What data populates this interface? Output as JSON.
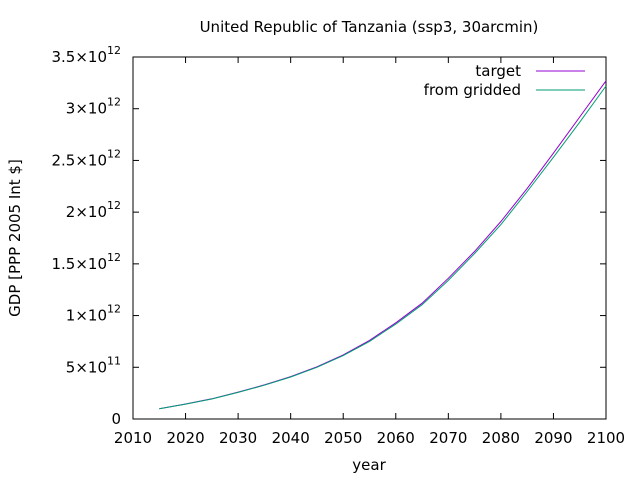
{
  "chart_data": {
    "type": "line",
    "title": "United Republic of Tanzania (ssp3, 30arcmin)",
    "xlabel": "year",
    "ylabel": "GDP [PPP 2005 Int $]",
    "xlim": [
      2010,
      2100
    ],
    "ylim": [
      0,
      3500000000000.0
    ],
    "grid": false,
    "legend_position": "top-right",
    "x_ticks": [
      {
        "value": 2010,
        "label": "2010"
      },
      {
        "value": 2020,
        "label": "2020"
      },
      {
        "value": 2030,
        "label": "2030"
      },
      {
        "value": 2040,
        "label": "2040"
      },
      {
        "value": 2050,
        "label": "2050"
      },
      {
        "value": 2060,
        "label": "2060"
      },
      {
        "value": 2070,
        "label": "2070"
      },
      {
        "value": 2080,
        "label": "2080"
      },
      {
        "value": 2090,
        "label": "2090"
      },
      {
        "value": 2100,
        "label": "2100"
      }
    ],
    "y_ticks": [
      {
        "value": 0,
        "mantissa": "0",
        "exponent": ""
      },
      {
        "value": 500000000000.0,
        "mantissa": "5×10",
        "exponent": "11"
      },
      {
        "value": 1000000000000.0,
        "mantissa": "1×10",
        "exponent": "12"
      },
      {
        "value": 1500000000000.0,
        "mantissa": "1.5×10",
        "exponent": "12"
      },
      {
        "value": 2000000000000.0,
        "mantissa": "2×10",
        "exponent": "12"
      },
      {
        "value": 2500000000000.0,
        "mantissa": "2.5×10",
        "exponent": "12"
      },
      {
        "value": 3000000000000.0,
        "mantissa": "3×10",
        "exponent": "12"
      },
      {
        "value": 3500000000000.0,
        "mantissa": "3.5×10",
        "exponent": "12"
      }
    ],
    "series": [
      {
        "name": "target",
        "color": "#9400d3",
        "x": [
          2015,
          2020,
          2025,
          2030,
          2035,
          2040,
          2045,
          2050,
          2055,
          2060,
          2065,
          2070,
          2075,
          2080,
          2085,
          2090,
          2095,
          2100
        ],
        "y": [
          100000000000.0,
          145000000000.0,
          195000000000.0,
          260000000000.0,
          330000000000.0,
          410000000000.0,
          505000000000.0,
          620000000000.0,
          760000000000.0,
          930000000000.0,
          1120000000000.0,
          1360000000000.0,
          1620000000000.0,
          1910000000000.0,
          2230000000000.0,
          2570000000000.0,
          2920000000000.0,
          3270000000000.0
        ]
      },
      {
        "name": "from gridded",
        "color": "#009e73",
        "x": [
          2015,
          2020,
          2025,
          2030,
          2035,
          2040,
          2045,
          2050,
          2055,
          2060,
          2065,
          2070,
          2075,
          2080,
          2085,
          2090,
          2095,
          2100
        ],
        "y": [
          100000000000.0,
          144000000000.0,
          193000000000.0,
          257000000000.0,
          327000000000.0,
          406000000000.0,
          500000000000.0,
          613000000000.0,
          750000000000.0,
          918000000000.0,
          1105000000000.0,
          1340000000000.0,
          1600000000000.0,
          1880000000000.0,
          2200000000000.0,
          2530000000000.0,
          2870000000000.0,
          3220000000000.0
        ]
      }
    ]
  }
}
